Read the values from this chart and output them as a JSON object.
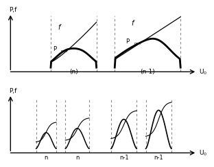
{
  "bg_color": "#ffffff",
  "top": {
    "ylabel": "P,f",
    "xlabel": "U₀",
    "n_dashes": [
      0.22,
      0.47
    ],
    "n1_dashes": [
      0.57,
      0.93
    ],
    "label_n": "(n)",
    "label_n1": "(n-1)"
  },
  "bottom": {
    "ylabel": "P,f",
    "xlabel": "U₀",
    "dashes": [
      0.18,
      0.3,
      0.4,
      0.52,
      0.6,
      0.72,
      0.82,
      0.94
    ],
    "n_labels": [
      "n",
      "n"
    ],
    "n1_labels": [
      "n-1",
      "n-1"
    ]
  }
}
